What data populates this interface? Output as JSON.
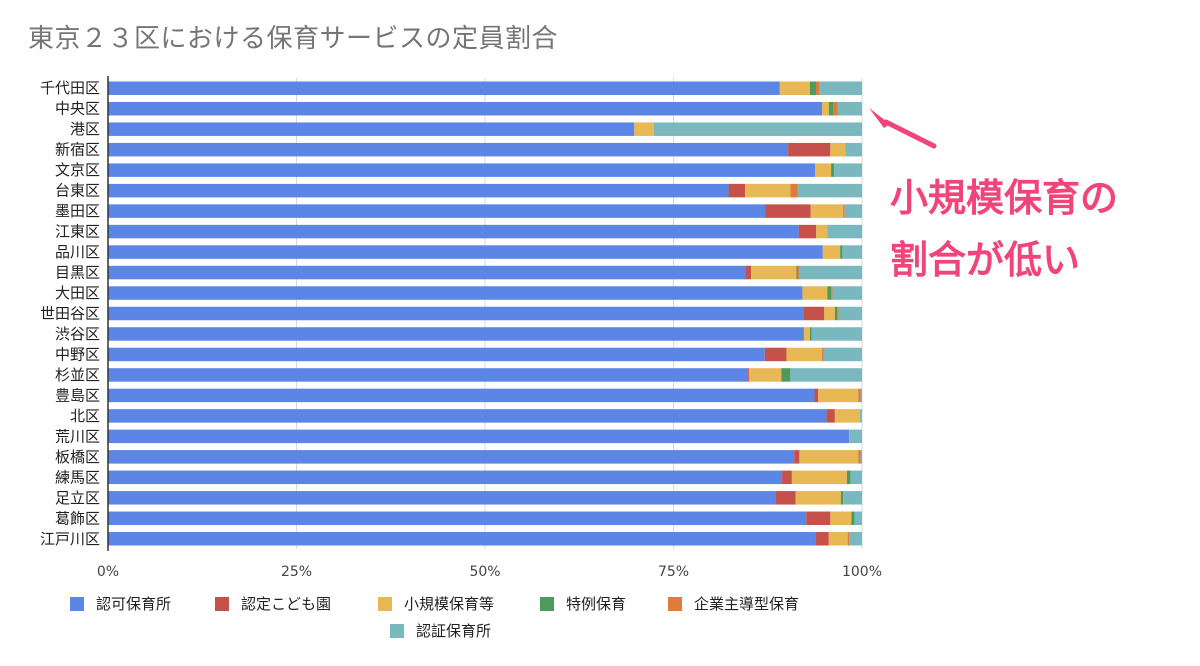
{
  "chart_data": {
    "type": "bar",
    "orientation": "horizontal",
    "stacked": "percent",
    "title": "東京２３区における保育サービスの定員割合",
    "categories": [
      "千代田区",
      "中央区",
      "港区",
      "新宿区",
      "文京区",
      "台東区",
      "墨田区",
      "江東区",
      "品川区",
      "目黒区",
      "大田区",
      "世田谷区",
      "渋谷区",
      "中野区",
      "杉並区",
      "豊島区",
      "北区",
      "荒川区",
      "板橋区",
      "練馬区",
      "足立区",
      "葛飾区",
      "江戸川区"
    ],
    "series": [
      {
        "name": "認可保育所",
        "color": "#5b86e5",
        "values": [
          89.1,
          94.7,
          69.8,
          90.2,
          93.8,
          82.3,
          87.2,
          91.6,
          94.8,
          84.5,
          92.1,
          92.2,
          92.3,
          87.1,
          84.8,
          93.7,
          95.3,
          98.3,
          91.0,
          89.4,
          88.5,
          92.6,
          93.8
        ]
      },
      {
        "name": "認定こども園",
        "color": "#c5514a",
        "values": [
          0,
          0,
          0,
          5.6,
          0,
          2.2,
          6.0,
          2.3,
          0,
          0.8,
          0,
          2.8,
          0,
          2.9,
          0.2,
          0.5,
          1.1,
          0,
          0.7,
          1.3,
          2.7,
          3.2,
          1.8
        ]
      },
      {
        "name": "小規模保育等",
        "color": "#e8b855",
        "values": [
          4.0,
          0.9,
          2.6,
          2.0,
          2.1,
          6.0,
          4.3,
          1.5,
          2.3,
          6.0,
          3.3,
          1.4,
          0.8,
          4.7,
          4.3,
          5.3,
          3.3,
          0,
          7.8,
          7.3,
          6.0,
          2.8,
          2.5
        ]
      },
      {
        "name": "特例保育",
        "color": "#4e9a5e",
        "values": [
          0.8,
          0.6,
          0,
          0,
          0.4,
          0,
          0,
          0,
          0.3,
          0.2,
          0.5,
          0.3,
          0.2,
          0,
          1.2,
          0,
          0,
          0,
          0,
          0.5,
          0.3,
          0.4,
          0
        ]
      },
      {
        "name": "企業主導型保育",
        "color": "#e07b39",
        "values": [
          0.4,
          0.6,
          0,
          0,
          0,
          1.0,
          0.2,
          0,
          0,
          0.2,
          0.2,
          0.2,
          0,
          0.2,
          0,
          0.3,
          0,
          0,
          0.3,
          0,
          0,
          0,
          0.2
        ]
      },
      {
        "name": "認証保育所",
        "color": "#7ab8bf",
        "values": [
          5.7,
          3.2,
          27.6,
          2.2,
          3.7,
          8.5,
          2.3,
          4.6,
          2.6,
          8.3,
          3.9,
          3.1,
          6.7,
          5.1,
          9.5,
          0.2,
          0.3,
          1.7,
          0.2,
          1.5,
          2.5,
          1.0,
          1.7
        ]
      }
    ],
    "x_ticks": [
      "0%",
      "25%",
      "50%",
      "75%",
      "100%"
    ],
    "xlim": [
      0,
      100
    ],
    "legend_position": "bottom",
    "grid": "vertical",
    "annotation": {
      "lines": [
        "小規模保育の",
        "割合が低い"
      ],
      "color": "#f0457a",
      "points_to": "中央区"
    }
  }
}
